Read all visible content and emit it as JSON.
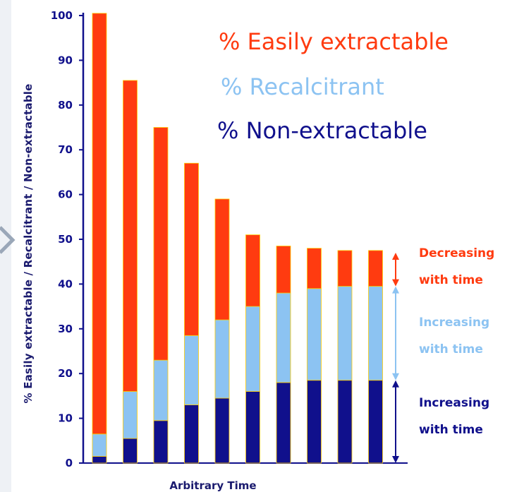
{
  "chart_data": {
    "type": "bar",
    "stacked": true,
    "categories": [
      "",
      "",
      "",
      "",
      "",
      "",
      "",
      "",
      "",
      ""
    ],
    "series": [
      {
        "name": "% Non-extractable",
        "color": "#10108c",
        "values": [
          1.5,
          5.5,
          9.5,
          13,
          14.5,
          16,
          18,
          18.5,
          18.5,
          18.5
        ]
      },
      {
        "name": "% Recalcitrant",
        "color": "#8cc3f2",
        "values": [
          5,
          10.5,
          13.5,
          15.5,
          17.5,
          19,
          20,
          20.5,
          21,
          21
        ]
      },
      {
        "name": "% Easily extractable",
        "color": "#ff3b10",
        "values": [
          94,
          69.5,
          52,
          38.5,
          27,
          16,
          10.5,
          9,
          8,
          8
        ]
      }
    ],
    "legend_order": [
      "% Easily extractable",
      "% Recalcitrant",
      "% Non-extractable"
    ],
    "xlabel": "Arbitrary Time",
    "ylabel": "% Easily extractable  /  Recalcitrant  /  Non-extractable",
    "ylim": [
      0,
      100
    ],
    "yticks": [
      "0",
      "10",
      "20",
      "30",
      "40",
      "50",
      "60",
      "70",
      "80",
      "90",
      "100"
    ],
    "grid": false,
    "legend_position": "top-right",
    "annotations": [
      {
        "line1": "Decreasing",
        "line2": "with time",
        "color": "#ff3b10",
        "span": [
          39.5,
          47
        ]
      },
      {
        "line1": "Increasing",
        "line2": "with time",
        "color": "#8cc3f2",
        "span": [
          18.5,
          39.5
        ]
      },
      {
        "line1": "Increasing",
        "line2": "with time",
        "color": "#10108c",
        "span": [
          0,
          18.5
        ]
      }
    ]
  },
  "colors": {
    "axis": "#10108c",
    "bar_outline": "#ffcc00",
    "title_text": "#1a1a6e",
    "side_arrow": "#9aa7b8"
  }
}
